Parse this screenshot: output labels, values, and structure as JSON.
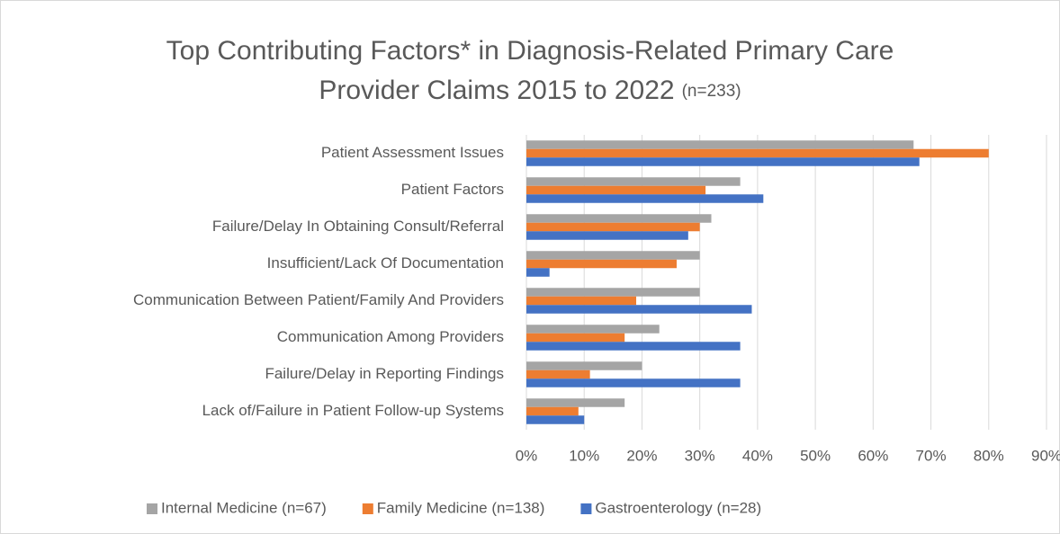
{
  "chart_data": {
    "type": "bar",
    "orientation": "horizontal",
    "title": [
      "Top Contributing Factors* in Diagnosis-Related Primary Care",
      "Provider Claims 2015 to 2022"
    ],
    "title_note": "(n=233)",
    "categories": [
      "Patient Assessment Issues",
      "Patient Factors",
      "Failure/Delay In Obtaining Consult/Referral",
      "Insufficient/Lack Of Documentation",
      "Communication Between Patient/Family And Providers",
      "Communication Among Providers",
      "Failure/Delay in Reporting Findings",
      "Lack of/Failure in Patient Follow-up Systems"
    ],
    "series": [
      {
        "name": "Internal Medicine (n=67)",
        "color": "#a5a5a5",
        "values": [
          67,
          37,
          32,
          30,
          30,
          23,
          20,
          17
        ]
      },
      {
        "name": "Family Medicine (n=138)",
        "color": "#ed7d31",
        "values": [
          80,
          31,
          30,
          26,
          19,
          17,
          11,
          9
        ]
      },
      {
        "name": "Gastroenterology (n=28)",
        "color": "#4472c4",
        "values": [
          68,
          41,
          28,
          4,
          39,
          37,
          37,
          10
        ]
      }
    ],
    "xlim": [
      0,
      90
    ],
    "xticks": [
      {
        "value": 0,
        "label": "0%"
      },
      {
        "value": 10,
        "label": "10%"
      },
      {
        "value": 20,
        "label": "20%"
      },
      {
        "value": 30,
        "label": "30%"
      },
      {
        "value": 40,
        "label": "40%"
      },
      {
        "value": 50,
        "label": "50%"
      },
      {
        "value": 60,
        "label": "60%"
      },
      {
        "value": 70,
        "label": "70%"
      },
      {
        "value": 80,
        "label": "80%"
      },
      {
        "value": 90,
        "label": "90%"
      }
    ],
    "grid": true,
    "legend": "bottom"
  }
}
